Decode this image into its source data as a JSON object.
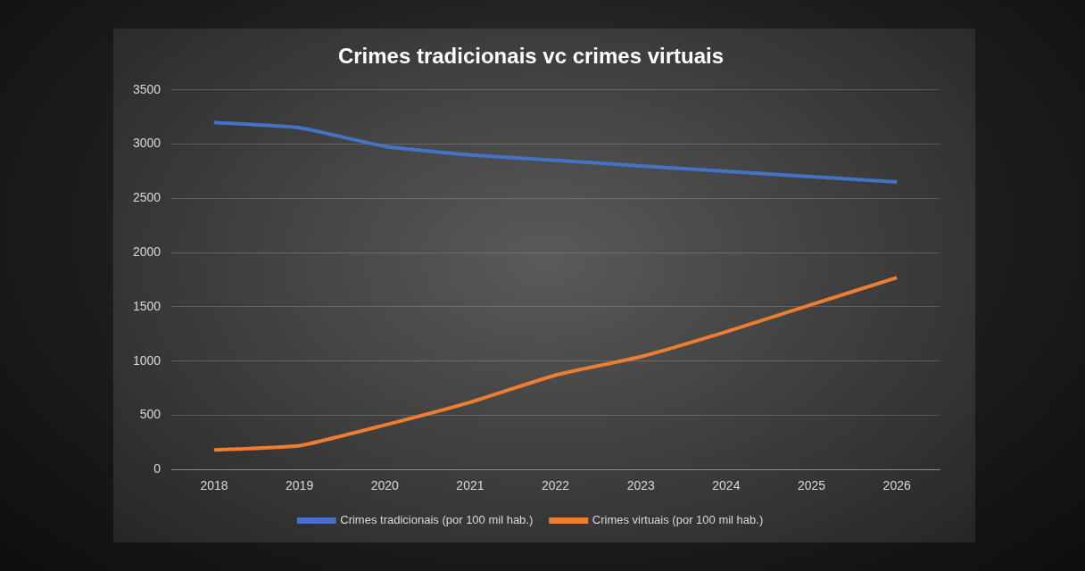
{
  "chart_data": {
    "type": "line",
    "title": "Crimes tradicionais vc crimes virtuais",
    "categories": [
      "2018",
      "2019",
      "2020",
      "2021",
      "2022",
      "2023",
      "2024",
      "2025",
      "2026"
    ],
    "series": [
      {
        "name": "Crimes tradicionais (por 100 mil hab.)",
        "color": "#4472c4",
        "values": [
          3200,
          3150,
          2980,
          2900,
          2850,
          2800,
          2750,
          2700,
          2650
        ]
      },
      {
        "name": "Crimes virtuais (por 100 mil hab.)",
        "color": "#ed7d31",
        "values": [
          180,
          220,
          410,
          620,
          870,
          1040,
          1270,
          1520,
          1770
        ]
      }
    ],
    "ylim": [
      0,
      3500
    ],
    "yticks": [
      0,
      500,
      1000,
      1500,
      2000,
      2500,
      3000,
      3500
    ],
    "grid": true,
    "legend": "bottom"
  }
}
